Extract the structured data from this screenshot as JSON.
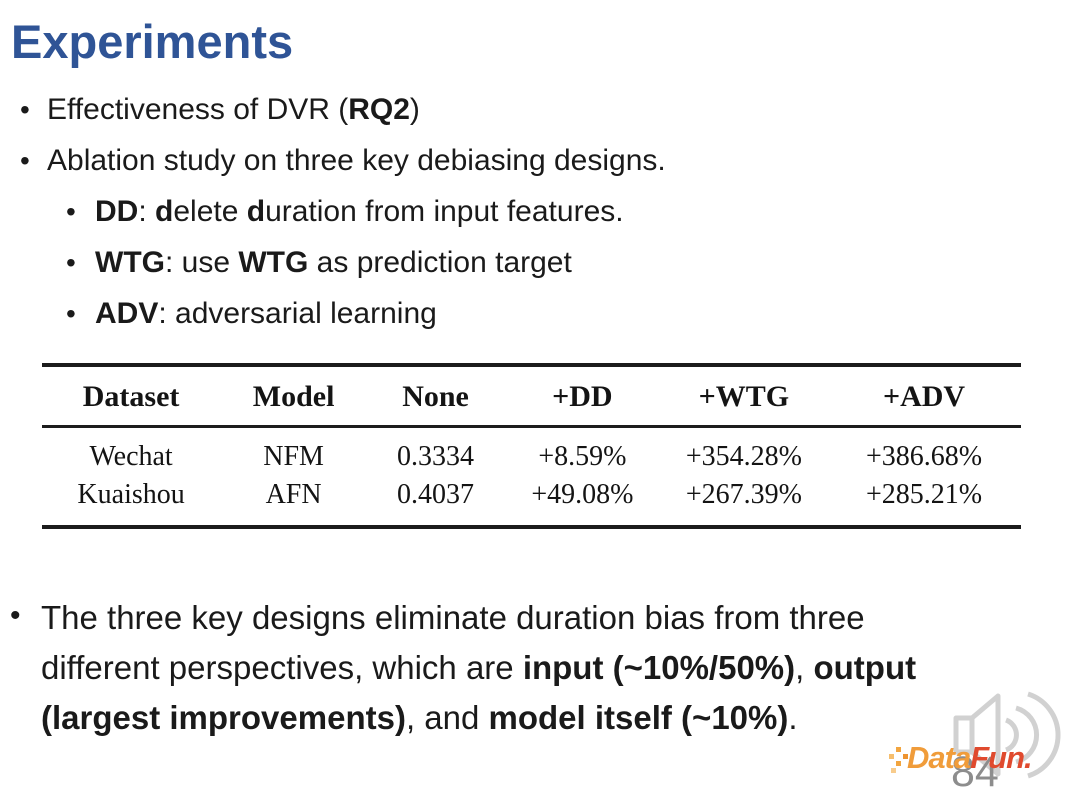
{
  "title": "Experiments",
  "page_number": "84",
  "colors": {
    "title": "#2F5496",
    "body_text": "#1A1A1A",
    "table_rule": "#1C1C1C",
    "logo_data_orange": "#F09C3A",
    "logo_fun_red": "#E04A2E",
    "page_number_gray": "#8D8D8D",
    "speaker_gray": "#CDCDCD"
  },
  "bullets": [
    {
      "level": 1,
      "segments": [
        {
          "t": "Effectiveness of DVR (",
          "b": false
        },
        {
          "t": "RQ2",
          "b": true
        },
        {
          "t": ")",
          "b": false
        }
      ]
    },
    {
      "level": 1,
      "segments": [
        {
          "t": "Ablation study on three key debiasing designs.",
          "b": false
        }
      ]
    },
    {
      "level": 2,
      "segments": [
        {
          "t": "DD",
          "b": true
        },
        {
          "t": ": ",
          "b": false
        },
        {
          "t": "d",
          "b": true
        },
        {
          "t": "elete ",
          "b": false
        },
        {
          "t": "d",
          "b": true
        },
        {
          "t": "uration from input features.",
          "b": false
        }
      ]
    },
    {
      "level": 2,
      "segments": [
        {
          "t": "WTG",
          "b": true
        },
        {
          "t": ": use ",
          "b": false
        },
        {
          "t": "WTG",
          "b": true
        },
        {
          "t": " as prediction target",
          "b": false
        }
      ]
    },
    {
      "level": 2,
      "segments": [
        {
          "t": "ADV",
          "b": true
        },
        {
          "t": ": adversarial learning",
          "b": false
        }
      ]
    }
  ],
  "table": {
    "columns": [
      "Dataset",
      "Model",
      "None",
      "+DD",
      "+WTG",
      "+ADV"
    ],
    "col_widths": [
      "18.2%",
      "15%",
      "14%",
      "16%",
      "17%",
      "19.8%"
    ],
    "rows": [
      [
        "Wechat",
        "NFM",
        "0.3334",
        "+8.59%",
        "+354.28%",
        "+386.68%"
      ],
      [
        "Kuaishou",
        "AFN",
        "0.4037",
        "+49.08%",
        "+267.39%",
        "+285.21%"
      ]
    ]
  },
  "paragraph": {
    "lines": [
      [
        {
          "t": "The three key designs eliminate duration bias from three",
          "b": false
        }
      ],
      [
        {
          "t": "different perspectives, which are ",
          "b": false
        },
        {
          "t": "input (~10%/50%)",
          "b": true
        },
        {
          "t": ", ",
          "b": false
        },
        {
          "t": "output",
          "b": true
        }
      ],
      [
        {
          "t": "(largest improvements)",
          "b": true
        },
        {
          "t": ", and ",
          "b": false
        },
        {
          "t": "model itself (~10%)",
          "b": true
        },
        {
          "t": ".",
          "b": false
        }
      ]
    ]
  },
  "logo": {
    "brand_data": "Data",
    "brand_fun": "Fun."
  }
}
